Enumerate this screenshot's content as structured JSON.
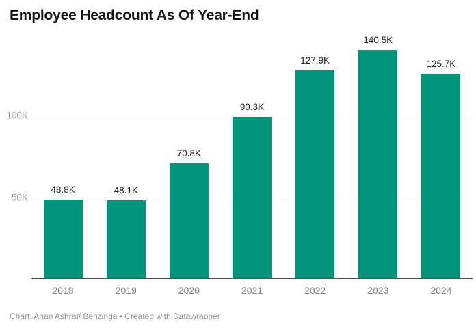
{
  "title": "Employee Headcount As Of Year-End",
  "footer": "Chart: Anan Ashraf/ Benzinga • Created with Datawrapper",
  "colors": {
    "bar": "#00947b",
    "grid": "#e9e9e9",
    "axis": "#4f4f4f",
    "ytick_label": "#9e9e9e",
    "xtick_label": "#7c7c7c",
    "value_label": "#1d1d1d",
    "title": "#141414",
    "footer": "#909090"
  },
  "chart_data": {
    "type": "bar",
    "title": "Employee Headcount As Of Year-End",
    "categories": [
      "2018",
      "2019",
      "2020",
      "2021",
      "2022",
      "2023",
      "2024"
    ],
    "values": [
      48.8,
      48.1,
      70.8,
      99.3,
      127.9,
      140.5,
      125.7
    ],
    "value_labels": [
      "48.8K",
      "48.1K",
      "70.8K",
      "99.3K",
      "127.9K",
      "140.5K",
      "125.7K"
    ],
    "unit": "K",
    "xlabel": "",
    "ylabel": "",
    "ylim": [
      0,
      150
    ],
    "yticks": [
      {
        "value": 50,
        "label": "50K"
      },
      {
        "value": 100,
        "label": "100K"
      }
    ],
    "grid": "horizontal",
    "legend": "none",
    "data_labels": "above-bars"
  }
}
